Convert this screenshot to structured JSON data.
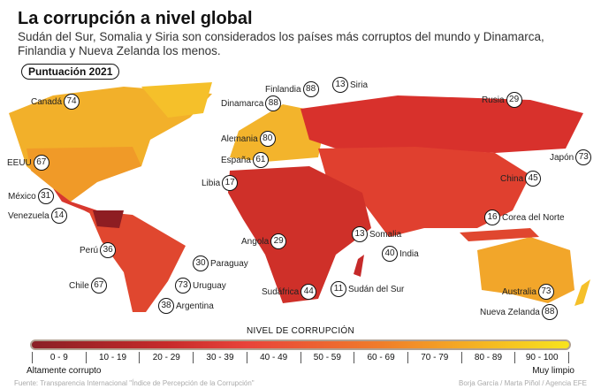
{
  "title": "La corrupción a nivel global",
  "subtitle": "Sudán del Sur, Somalia y Siria son considerados los países más corruptos del mundo y Dinamarca, Finlandia y Nueva Zelanda los menos.",
  "badge": "Puntuación 2021",
  "countries": [
    {
      "name": "Canadá",
      "score": "74"
    },
    {
      "name": "Finlandia",
      "score": "88"
    },
    {
      "name": "Siria",
      "score": "13"
    },
    {
      "name": "Dinamarca",
      "score": "88"
    },
    {
      "name": "Rusia",
      "score": "29"
    },
    {
      "name": "Alemania",
      "score": "80"
    },
    {
      "name": "EEUU",
      "score": "67"
    },
    {
      "name": "España",
      "score": "61"
    },
    {
      "name": "Japón",
      "score": "73"
    },
    {
      "name": "Libia",
      "score": "17"
    },
    {
      "name": "China",
      "score": "45"
    },
    {
      "name": "México",
      "score": "31"
    },
    {
      "name": "Venezuela",
      "score": "14"
    },
    {
      "name": "Corea del Norte",
      "score": "16"
    },
    {
      "name": "Somalia",
      "score": "13"
    },
    {
      "name": "Angola",
      "score": "29"
    },
    {
      "name": "India",
      "score": "40"
    },
    {
      "name": "Perú",
      "score": "36"
    },
    {
      "name": "Paraguay",
      "score": "30"
    },
    {
      "name": "Chile",
      "score": "67"
    },
    {
      "name": "Uruguay",
      "score": "73"
    },
    {
      "name": "Sudáfrica",
      "score": "44"
    },
    {
      "name": "Sudán del Sur",
      "score": "11"
    },
    {
      "name": "Australia",
      "score": "73"
    },
    {
      "name": "Argentina",
      "score": "38"
    },
    {
      "name": "Nueva Zelanda",
      "score": "88"
    }
  ],
  "legend": {
    "title": "NIVEL DE CORRUPCIÓN",
    "ranges": [
      "0 - 9",
      "10 - 19",
      "20 - 29",
      "30 - 39",
      "40 - 49",
      "50 - 59",
      "60 - 69",
      "70 - 79",
      "80 - 89",
      "90 - 100"
    ],
    "low": "Altamente corrupto",
    "high": "Muy limpio"
  },
  "source": "Fuente: Transparencia Internacional \"Índice de Percepción de la Corrupción\"",
  "credits": "Borja García / Marta Piñol / Agencia EFE"
}
